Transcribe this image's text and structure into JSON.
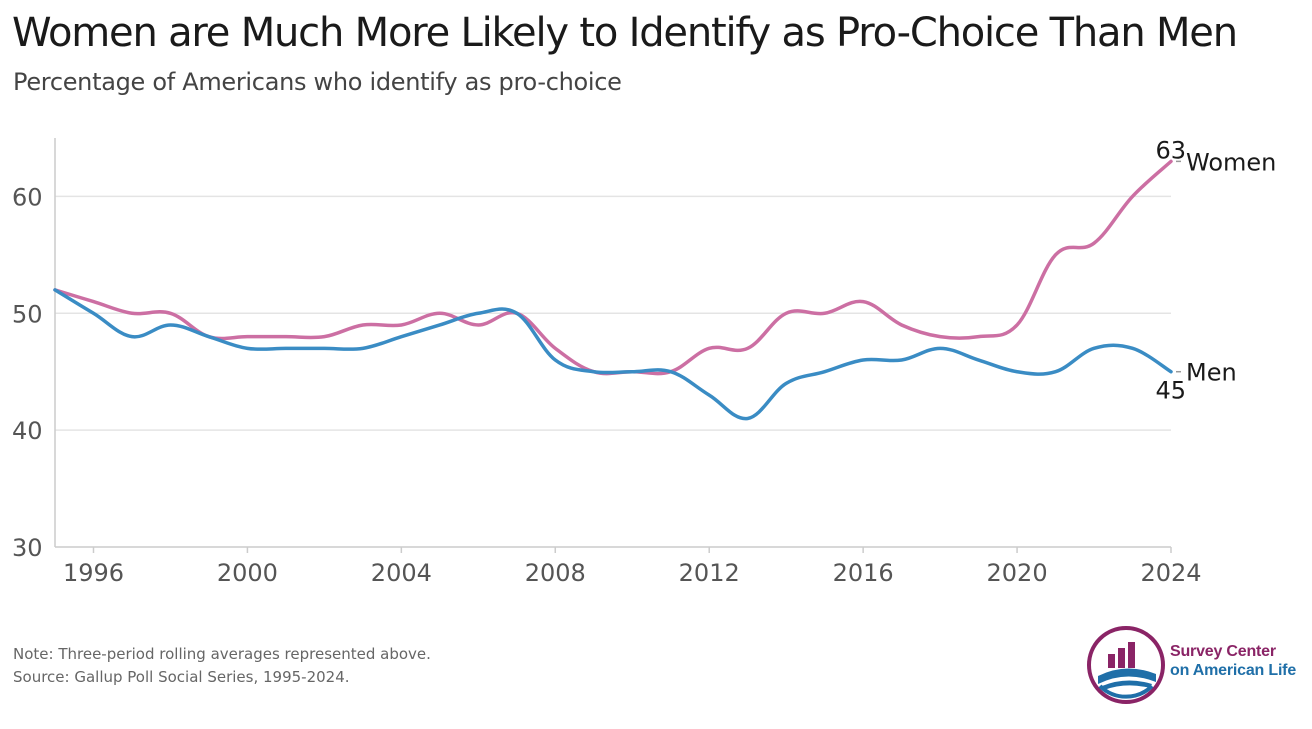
{
  "header": {
    "title": "Women are Much More Likely to Identify as Pro-Choice Than Men",
    "subtitle": "Percentage of Americans who identify as pro-choice"
  },
  "colors": {
    "women": "#cc6fa3",
    "men": "#3a8cc4",
    "grid": "#e4e4e4",
    "axis": "#cccccc",
    "logo_magenta": "#8a2466",
    "logo_blue": "#1f6fa8"
  },
  "chart_data": {
    "type": "line",
    "x": [
      1995,
      1996,
      1997,
      1998,
      1999,
      2000,
      2001,
      2002,
      2003,
      2004,
      2005,
      2006,
      2007,
      2008,
      2009,
      2010,
      2011,
      2012,
      2013,
      2014,
      2015,
      2016,
      2017,
      2018,
      2019,
      2020,
      2021,
      2022,
      2023,
      2024
    ],
    "series": [
      {
        "name": "Women",
        "color": "#cc6fa3",
        "values": [
          52,
          51,
          50,
          50,
          48,
          48,
          48,
          48,
          49,
          49,
          50,
          49,
          50,
          47,
          45,
          45,
          45,
          47,
          47,
          50,
          50,
          51,
          49,
          48,
          48,
          49,
          55,
          56,
          60,
          63
        ],
        "end_value_label": "63"
      },
      {
        "name": "Men",
        "color": "#3a8cc4",
        "values": [
          52,
          50,
          48,
          49,
          48,
          47,
          47,
          47,
          47,
          48,
          49,
          50,
          50,
          46,
          45,
          45,
          45,
          43,
          41,
          44,
          45,
          46,
          46,
          47,
          46,
          45,
          45,
          47,
          47,
          45
        ],
        "end_value_label": "45"
      }
    ],
    "xticks": [
      "1996",
      "2000",
      "2004",
      "2008",
      "2012",
      "2016",
      "2020",
      "2024"
    ],
    "yticks": [
      "30",
      "40",
      "50",
      "60"
    ],
    "xlim": [
      1995,
      2024
    ],
    "ylim": [
      30,
      65
    ],
    "grid": "horizontal",
    "legend": "direct labels at line ends",
    "xlabel": "",
    "ylabel": ""
  },
  "footer": {
    "note": "Note: Three-period rolling averages represented above.",
    "source": "Source: Gallup Poll Social Series, 1995-2024."
  },
  "logo": {
    "line1": "Survey Center",
    "line2": "on American Life"
  }
}
